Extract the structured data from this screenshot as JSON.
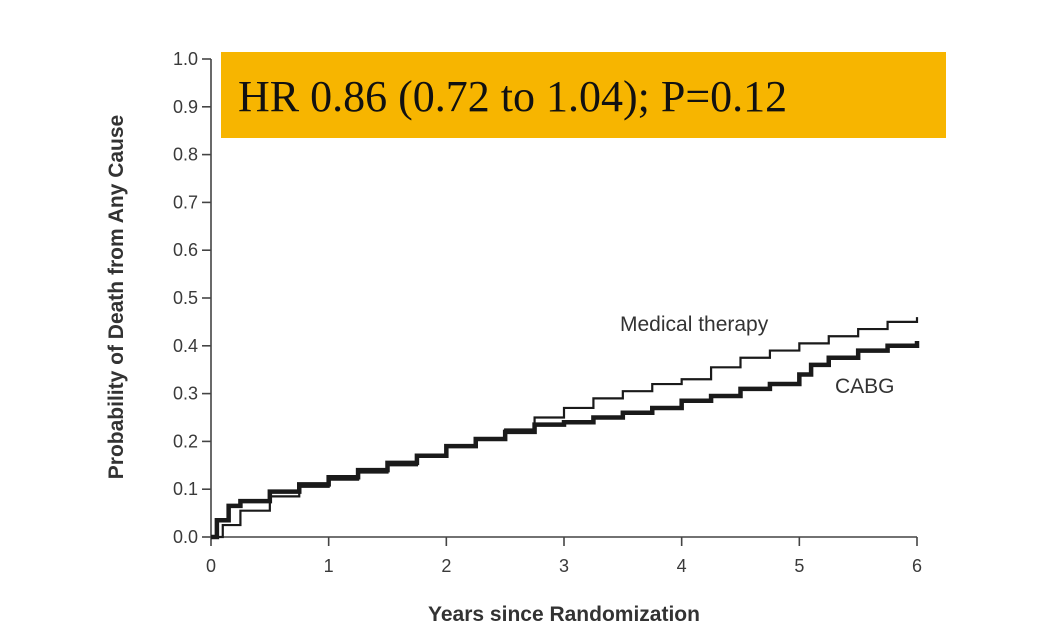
{
  "chart_data": {
    "type": "line",
    "annotation": "HR 0.86 (0.72 to 1.04); P=0.12",
    "xlabel": "Years since Randomization",
    "ylabel": "Probability of Death from Any Cause",
    "xlim": [
      0,
      6
    ],
    "ylim": [
      0,
      1.0
    ],
    "x_ticks": [
      "0",
      "1",
      "2",
      "3",
      "4",
      "5",
      "6"
    ],
    "y_ticks": [
      "0.0",
      "0.1",
      "0.2",
      "0.3",
      "0.4",
      "0.5",
      "0.6",
      "0.7",
      "0.8",
      "0.9",
      "1.0"
    ],
    "grid": false,
    "colors": {
      "series": "#1a1a1a",
      "annotation_bg": "#f7b500",
      "axis": "#444444"
    },
    "series": [
      {
        "name": "Medical therapy",
        "x": [
          0,
          0.1,
          0.25,
          0.5,
          0.75,
          1.0,
          1.25,
          1.5,
          1.75,
          2.0,
          2.25,
          2.5,
          2.75,
          3.0,
          3.25,
          3.5,
          3.75,
          4.0,
          4.25,
          4.5,
          4.75,
          5.0,
          5.25,
          5.5,
          5.75,
          6.0
        ],
        "y": [
          0,
          0.025,
          0.055,
          0.085,
          0.105,
          0.12,
          0.135,
          0.15,
          0.17,
          0.19,
          0.205,
          0.225,
          0.25,
          0.27,
          0.29,
          0.305,
          0.32,
          0.33,
          0.355,
          0.375,
          0.39,
          0.405,
          0.42,
          0.435,
          0.45,
          0.46
        ]
      },
      {
        "name": "CABG",
        "x": [
          0,
          0.05,
          0.15,
          0.25,
          0.5,
          0.75,
          1.0,
          1.25,
          1.5,
          1.75,
          2.0,
          2.25,
          2.5,
          2.75,
          3.0,
          3.25,
          3.5,
          3.75,
          4.0,
          4.25,
          4.5,
          4.75,
          5.0,
          5.1,
          5.25,
          5.5,
          5.75,
          6.0
        ],
        "y": [
          0,
          0.035,
          0.065,
          0.075,
          0.095,
          0.11,
          0.125,
          0.14,
          0.155,
          0.17,
          0.19,
          0.205,
          0.22,
          0.235,
          0.24,
          0.25,
          0.26,
          0.27,
          0.285,
          0.295,
          0.31,
          0.32,
          0.34,
          0.36,
          0.375,
          0.39,
          0.4,
          0.41
        ]
      }
    ]
  }
}
